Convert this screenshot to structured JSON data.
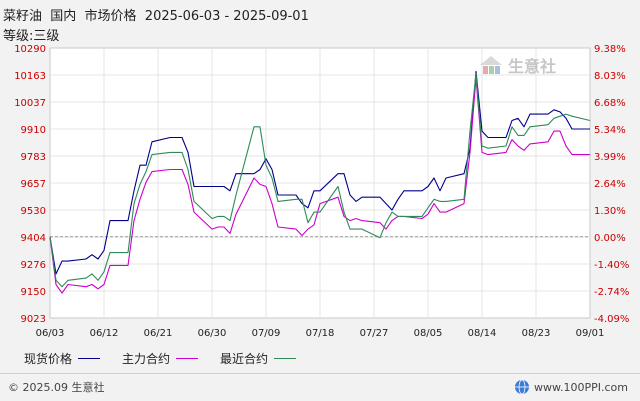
{
  "header": {
    "title": "菜籽油  国内  市场价格  2025-06-03 - 2025-09-01",
    "grade": "等级:三级"
  },
  "watermark": {
    "text": "生意社"
  },
  "footer": {
    "copyright": "© 2025.09 生意社",
    "site": "www.100PPI.com"
  },
  "colors": {
    "spot": "#00008b",
    "main": "#cc00cc",
    "recent": "#2e8b57",
    "axis": "#cc0000"
  },
  "chart_data": {
    "type": "line",
    "y_left_ticks": [
      "10290",
      "10163",
      "10037",
      "9910",
      "9783",
      "9657",
      "9530",
      "9404",
      "9276",
      "9150",
      "9023"
    ],
    "y_right_ticks": [
      "9.38%",
      "8.03%",
      "6.68%",
      "5.34%",
      "3.99%",
      "2.64%",
      "1.30%",
      "0.00%",
      "-1.40%",
      "-2.74%",
      "-4.09%"
    ],
    "x_ticks": [
      "06/03",
      "06/12",
      "06/21",
      "06/30",
      "07/09",
      "07/18",
      "07/27",
      "08/05",
      "08/14",
      "08/23",
      "09/01"
    ],
    "ylim": [
      9023,
      10290
    ],
    "x_range": [
      "2025-06-03",
      "2025-09-01"
    ],
    "legend": [
      "现货价格",
      "主力合约",
      "最近合约"
    ],
    "series": [
      {
        "name": "现货价格",
        "color": "#00008b",
        "points": [
          [
            "2025-06-03",
            9404
          ],
          [
            "2025-06-04",
            9230
          ],
          [
            "2025-06-05",
            9290
          ],
          [
            "2025-06-06",
            9290
          ],
          [
            "2025-06-09",
            9300
          ],
          [
            "2025-06-10",
            9320
          ],
          [
            "2025-06-11",
            9300
          ],
          [
            "2025-06-12",
            9340
          ],
          [
            "2025-06-13",
            9480
          ],
          [
            "2025-06-16",
            9480
          ],
          [
            "2025-06-17",
            9620
          ],
          [
            "2025-06-18",
            9740
          ],
          [
            "2025-06-19",
            9740
          ],
          [
            "2025-06-20",
            9850
          ],
          [
            "2025-06-23",
            9870
          ],
          [
            "2025-06-25",
            9870
          ],
          [
            "2025-06-26",
            9800
          ],
          [
            "2025-06-27",
            9640
          ],
          [
            "2025-07-02",
            9640
          ],
          [
            "2025-07-03",
            9620
          ],
          [
            "2025-07-04",
            9700
          ],
          [
            "2025-07-07",
            9700
          ],
          [
            "2025-07-08",
            9720
          ],
          [
            "2025-07-09",
            9770
          ],
          [
            "2025-07-10",
            9720
          ],
          [
            "2025-07-11",
            9600
          ],
          [
            "2025-07-14",
            9600
          ],
          [
            "2025-07-15",
            9560
          ],
          [
            "2025-07-16",
            9540
          ],
          [
            "2025-07-17",
            9620
          ],
          [
            "2025-07-18",
            9620
          ],
          [
            "2025-07-21",
            9700
          ],
          [
            "2025-07-22",
            9700
          ],
          [
            "2025-07-23",
            9600
          ],
          [
            "2025-07-24",
            9570
          ],
          [
            "2025-07-25",
            9590
          ],
          [
            "2025-07-28",
            9590
          ],
          [
            "2025-07-29",
            9560
          ],
          [
            "2025-07-30",
            9530
          ],
          [
            "2025-07-31",
            9580
          ],
          [
            "2025-08-01",
            9620
          ],
          [
            "2025-08-04",
            9620
          ],
          [
            "2025-08-05",
            9640
          ],
          [
            "2025-08-06",
            9680
          ],
          [
            "2025-08-07",
            9620
          ],
          [
            "2025-08-08",
            9680
          ],
          [
            "2025-08-11",
            9700
          ],
          [
            "2025-08-12",
            9820
          ],
          [
            "2025-08-13",
            10180
          ],
          [
            "2025-08-14",
            9900
          ],
          [
            "2025-08-15",
            9870
          ],
          [
            "2025-08-18",
            9870
          ],
          [
            "2025-08-19",
            9950
          ],
          [
            "2025-08-20",
            9960
          ],
          [
            "2025-08-21",
            9920
          ],
          [
            "2025-08-22",
            9980
          ],
          [
            "2025-08-25",
            9980
          ],
          [
            "2025-08-26",
            10000
          ],
          [
            "2025-08-27",
            9990
          ],
          [
            "2025-08-28",
            9960
          ],
          [
            "2025-08-29",
            9910
          ],
          [
            "2025-09-01",
            9910
          ]
        ]
      },
      {
        "name": "主力合约",
        "color": "#cc00cc",
        "points": [
          [
            "2025-06-03",
            9404
          ],
          [
            "2025-06-04",
            9180
          ],
          [
            "2025-06-05",
            9140
          ],
          [
            "2025-06-06",
            9180
          ],
          [
            "2025-06-09",
            9170
          ],
          [
            "2025-06-10",
            9180
          ],
          [
            "2025-06-11",
            9160
          ],
          [
            "2025-06-12",
            9180
          ],
          [
            "2025-06-13",
            9270
          ],
          [
            "2025-06-16",
            9270
          ],
          [
            "2025-06-17",
            9480
          ],
          [
            "2025-06-18",
            9580
          ],
          [
            "2025-06-19",
            9660
          ],
          [
            "2025-06-20",
            9710
          ],
          [
            "2025-06-23",
            9720
          ],
          [
            "2025-06-25",
            9720
          ],
          [
            "2025-06-26",
            9650
          ],
          [
            "2025-06-27",
            9520
          ],
          [
            "2025-06-30",
            9440
          ],
          [
            "2025-07-01",
            9450
          ],
          [
            "2025-07-02",
            9450
          ],
          [
            "2025-07-03",
            9420
          ],
          [
            "2025-07-04",
            9510
          ],
          [
            "2025-07-07",
            9680
          ],
          [
            "2025-07-08",
            9650
          ],
          [
            "2025-07-09",
            9640
          ],
          [
            "2025-07-10",
            9560
          ],
          [
            "2025-07-11",
            9450
          ],
          [
            "2025-07-14",
            9440
          ],
          [
            "2025-07-15",
            9410
          ],
          [
            "2025-07-16",
            9440
          ],
          [
            "2025-07-17",
            9460
          ],
          [
            "2025-07-18",
            9560
          ],
          [
            "2025-07-21",
            9590
          ],
          [
            "2025-07-22",
            9500
          ],
          [
            "2025-07-23",
            9480
          ],
          [
            "2025-07-24",
            9490
          ],
          [
            "2025-07-25",
            9480
          ],
          [
            "2025-07-28",
            9470
          ],
          [
            "2025-07-29",
            9440
          ],
          [
            "2025-07-30",
            9480
          ],
          [
            "2025-07-31",
            9500
          ],
          [
            "2025-08-01",
            9500
          ],
          [
            "2025-08-04",
            9490
          ],
          [
            "2025-08-05",
            9510
          ],
          [
            "2025-08-06",
            9560
          ],
          [
            "2025-08-07",
            9520
          ],
          [
            "2025-08-08",
            9520
          ],
          [
            "2025-08-11",
            9560
          ],
          [
            "2025-08-12",
            9800
          ],
          [
            "2025-08-13",
            10150
          ],
          [
            "2025-08-14",
            9800
          ],
          [
            "2025-08-15",
            9790
          ],
          [
            "2025-08-18",
            9800
          ],
          [
            "2025-08-19",
            9860
          ],
          [
            "2025-08-20",
            9830
          ],
          [
            "2025-08-21",
            9810
          ],
          [
            "2025-08-22",
            9840
          ],
          [
            "2025-08-25",
            9850
          ],
          [
            "2025-08-26",
            9900
          ],
          [
            "2025-08-27",
            9900
          ],
          [
            "2025-08-28",
            9830
          ],
          [
            "2025-08-29",
            9790
          ],
          [
            "2025-09-01",
            9790
          ]
        ]
      },
      {
        "name": "最近合约",
        "color": "#2e8b57",
        "points": [
          [
            "2025-06-03",
            9404
          ],
          [
            "2025-06-04",
            9200
          ],
          [
            "2025-06-05",
            9170
          ],
          [
            "2025-06-06",
            9200
          ],
          [
            "2025-06-09",
            9210
          ],
          [
            "2025-06-10",
            9230
          ],
          [
            "2025-06-11",
            9200
          ],
          [
            "2025-06-12",
            9240
          ],
          [
            "2025-06-13",
            9330
          ],
          [
            "2025-06-16",
            9330
          ],
          [
            "2025-06-17",
            9560
          ],
          [
            "2025-06-18",
            9650
          ],
          [
            "2025-06-19",
            9710
          ],
          [
            "2025-06-20",
            9790
          ],
          [
            "2025-06-23",
            9800
          ],
          [
            "2025-06-25",
            9800
          ],
          [
            "2025-06-26",
            9720
          ],
          [
            "2025-06-27",
            9570
          ],
          [
            "2025-06-30",
            9490
          ],
          [
            "2025-07-01",
            9500
          ],
          [
            "2025-07-02",
            9500
          ],
          [
            "2025-07-03",
            9480
          ],
          [
            "2025-07-04",
            9600
          ],
          [
            "2025-07-07",
            9920
          ],
          [
            "2025-07-08",
            9920
          ],
          [
            "2025-07-09",
            9740
          ],
          [
            "2025-07-10",
            9680
          ],
          [
            "2025-07-11",
            9570
          ],
          [
            "2025-07-14",
            9580
          ],
          [
            "2025-07-15",
            9580
          ],
          [
            "2025-07-16",
            9470
          ],
          [
            "2025-07-17",
            9520
          ],
          [
            "2025-07-18",
            9520
          ],
          [
            "2025-07-21",
            9640
          ],
          [
            "2025-07-22",
            9520
          ],
          [
            "2025-07-23",
            9440
          ],
          [
            "2025-07-24",
            9440
          ],
          [
            "2025-07-25",
            9440
          ],
          [
            "2025-07-28",
            9400
          ],
          [
            "2025-07-29",
            9470
          ],
          [
            "2025-07-30",
            9520
          ],
          [
            "2025-07-31",
            9500
          ],
          [
            "2025-08-01",
            9500
          ],
          [
            "2025-08-04",
            9500
          ],
          [
            "2025-08-05",
            9540
          ],
          [
            "2025-08-06",
            9580
          ],
          [
            "2025-08-07",
            9570
          ],
          [
            "2025-08-08",
            9570
          ],
          [
            "2025-08-11",
            9580
          ],
          [
            "2025-08-12",
            9900
          ],
          [
            "2025-08-13",
            10170
          ],
          [
            "2025-08-14",
            9830
          ],
          [
            "2025-08-15",
            9820
          ],
          [
            "2025-08-18",
            9830
          ],
          [
            "2025-08-19",
            9920
          ],
          [
            "2025-08-20",
            9880
          ],
          [
            "2025-08-21",
            9880
          ],
          [
            "2025-08-22",
            9920
          ],
          [
            "2025-08-25",
            9930
          ],
          [
            "2025-08-26",
            9960
          ],
          [
            "2025-08-27",
            9970
          ],
          [
            "2025-08-28",
            9980
          ],
          [
            "2025-08-29",
            9970
          ],
          [
            "2025-09-01",
            9950
          ]
        ]
      }
    ]
  }
}
